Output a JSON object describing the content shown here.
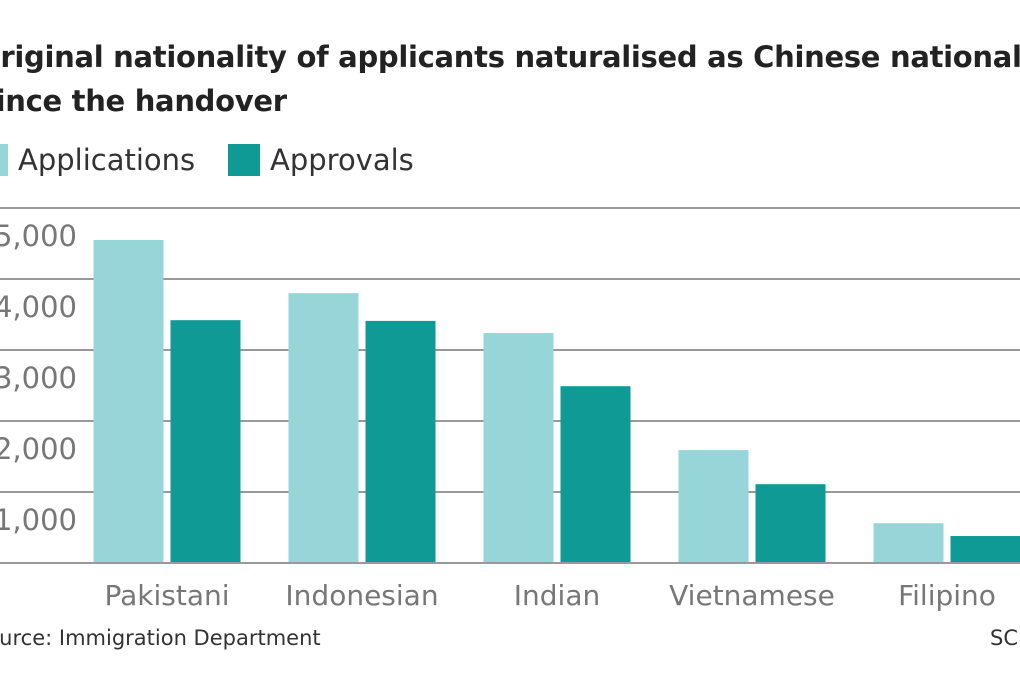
{
  "chart_data": {
    "type": "bar",
    "title": "Original nationality of applicants naturalised as Chinese nationals since the handover",
    "title_lines": [
      "Original nationality of applicants naturalised as Chinese nationals",
      "Since the handover"
    ],
    "categories": [
      "Pakistani",
      "Indonesian",
      "Indian",
      "Vietnamese",
      "Filipino"
    ],
    "series": [
      {
        "name": "Applications",
        "color": "#97d6d8",
        "values": [
          4550,
          3800,
          3240,
          1590,
          560
        ]
      },
      {
        "name": "Approvals",
        "color": "#0f9a96",
        "values": [
          3420,
          3410,
          2490,
          1110,
          380
        ]
      }
    ],
    "yticks": [
      1000,
      2000,
      3000,
      4000,
      5000
    ],
    "ytick_labels": [
      "1,000",
      "2,000",
      "3,000",
      "4,000",
      "5,000"
    ],
    "ylim": [
      0,
      5000
    ],
    "grid": true,
    "legend": "top-left",
    "xlabel": "",
    "ylabel": ""
  },
  "source": "Source: Immigration Department",
  "credit": "SCMP"
}
